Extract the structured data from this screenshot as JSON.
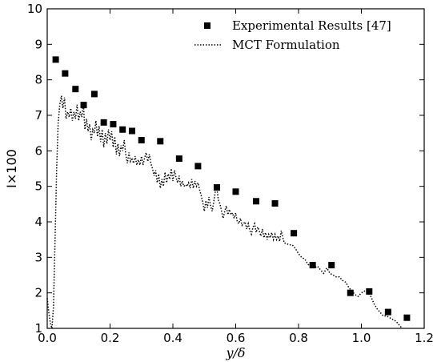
{
  "chart_data": {
    "type": "scatter",
    "xlabel": "y/δ",
    "ylabel": "I×100",
    "xlim": [
      0.0,
      1.2
    ],
    "ylim": [
      1,
      10
    ],
    "x_ticks": [
      "0.0",
      "0.2",
      "0.4",
      "0.6",
      "0.8",
      "1.0",
      "1.2"
    ],
    "y_ticks": [
      "1",
      "2",
      "3",
      "4",
      "5",
      "6",
      "7",
      "8",
      "9",
      "10"
    ],
    "grid": false,
    "legend_position": "top-right",
    "series": [
      {
        "name": "Experimental Results [47]",
        "style": "square-markers",
        "color": "#000000",
        "points": [
          [
            0.027,
            8.57
          ],
          [
            0.057,
            8.18
          ],
          [
            0.09,
            7.74
          ],
          [
            0.116,
            7.29
          ],
          [
            0.15,
            7.6
          ],
          [
            0.18,
            6.8
          ],
          [
            0.21,
            6.75
          ],
          [
            0.24,
            6.6
          ],
          [
            0.27,
            6.56
          ],
          [
            0.3,
            6.3
          ],
          [
            0.36,
            6.27
          ],
          [
            0.42,
            5.78
          ],
          [
            0.48,
            5.57
          ],
          [
            0.54,
            4.97
          ],
          [
            0.6,
            4.85
          ],
          [
            0.665,
            4.58
          ],
          [
            0.725,
            4.52
          ],
          [
            0.785,
            3.68
          ],
          [
            0.845,
            2.78
          ],
          [
            0.905,
            2.78
          ],
          [
            0.965,
            2.0
          ],
          [
            1.025,
            2.04
          ],
          [
            1.085,
            1.46
          ],
          [
            1.145,
            1.3
          ]
        ]
      },
      {
        "name": "MCT Formulation",
        "style": "dotted-line",
        "color": "#000000",
        "points": [
          [
            0.0,
            1.85
          ],
          [
            0.005,
            1.45
          ],
          [
            0.01,
            1.15
          ],
          [
            0.015,
            1.0
          ],
          [
            0.02,
            1.6
          ],
          [
            0.025,
            3.5
          ],
          [
            0.03,
            5.5
          ],
          [
            0.035,
            6.8
          ],
          [
            0.04,
            7.3
          ],
          [
            0.045,
            7.55
          ],
          [
            0.05,
            7.2
          ],
          [
            0.055,
            7.5
          ],
          [
            0.06,
            6.9
          ],
          [
            0.065,
            7.1
          ],
          [
            0.07,
            6.95
          ],
          [
            0.075,
            7.2
          ],
          [
            0.08,
            6.85
          ],
          [
            0.085,
            7.1
          ],
          [
            0.09,
            6.9
          ],
          [
            0.095,
            7.3
          ],
          [
            0.1,
            6.85
          ],
          [
            0.105,
            7.1
          ],
          [
            0.11,
            6.95
          ],
          [
            0.115,
            7.35
          ],
          [
            0.12,
            6.6
          ],
          [
            0.125,
            6.9
          ],
          [
            0.13,
            6.55
          ],
          [
            0.135,
            6.75
          ],
          [
            0.14,
            6.3
          ],
          [
            0.145,
            6.6
          ],
          [
            0.15,
            6.5
          ],
          [
            0.155,
            6.85
          ],
          [
            0.16,
            6.4
          ],
          [
            0.165,
            6.7
          ],
          [
            0.17,
            6.25
          ],
          [
            0.175,
            6.6
          ],
          [
            0.18,
            6.1
          ],
          [
            0.185,
            6.5
          ],
          [
            0.19,
            6.2
          ],
          [
            0.195,
            6.6
          ],
          [
            0.2,
            6.3
          ],
          [
            0.205,
            6.55
          ],
          [
            0.21,
            6.1
          ],
          [
            0.215,
            6.4
          ],
          [
            0.22,
            5.9
          ],
          [
            0.225,
            6.2
          ],
          [
            0.23,
            5.85
          ],
          [
            0.235,
            6.15
          ],
          [
            0.24,
            6.0
          ],
          [
            0.245,
            6.3
          ],
          [
            0.25,
            5.9
          ],
          [
            0.255,
            5.65
          ],
          [
            0.26,
            5.95
          ],
          [
            0.265,
            5.7
          ],
          [
            0.27,
            5.8
          ],
          [
            0.275,
            5.65
          ],
          [
            0.28,
            5.85
          ],
          [
            0.285,
            5.6
          ],
          [
            0.29,
            5.75
          ],
          [
            0.295,
            5.6
          ],
          [
            0.3,
            5.85
          ],
          [
            0.305,
            5.6
          ],
          [
            0.31,
            5.8
          ],
          [
            0.315,
            5.95
          ],
          [
            0.32,
            5.7
          ],
          [
            0.325,
            5.9
          ],
          [
            0.33,
            5.65
          ],
          [
            0.335,
            5.5
          ],
          [
            0.34,
            5.3
          ],
          [
            0.345,
            5.45
          ],
          [
            0.35,
            5.1
          ],
          [
            0.355,
            5.35
          ],
          [
            0.36,
            4.95
          ],
          [
            0.365,
            5.2
          ],
          [
            0.37,
            5.0
          ],
          [
            0.375,
            5.4
          ],
          [
            0.38,
            5.1
          ],
          [
            0.385,
            5.35
          ],
          [
            0.39,
            5.2
          ],
          [
            0.395,
            5.5
          ],
          [
            0.4,
            5.15
          ],
          [
            0.405,
            5.45
          ],
          [
            0.41,
            5.25
          ],
          [
            0.415,
            5.1
          ],
          [
            0.42,
            5.3
          ],
          [
            0.425,
            5.0
          ],
          [
            0.43,
            5.15
          ],
          [
            0.435,
            5.0
          ],
          [
            0.44,
            5.05
          ],
          [
            0.445,
            5.0
          ],
          [
            0.45,
            5.1
          ],
          [
            0.455,
            4.95
          ],
          [
            0.46,
            5.2
          ],
          [
            0.465,
            4.95
          ],
          [
            0.47,
            5.15
          ],
          [
            0.475,
            5.0
          ],
          [
            0.48,
            5.1
          ],
          [
            0.485,
            4.9
          ],
          [
            0.49,
            4.75
          ],
          [
            0.495,
            4.55
          ],
          [
            0.5,
            4.3
          ],
          [
            0.505,
            4.6
          ],
          [
            0.51,
            4.4
          ],
          [
            0.515,
            4.7
          ],
          [
            0.52,
            4.45
          ],
          [
            0.525,
            4.3
          ],
          [
            0.53,
            4.55
          ],
          [
            0.535,
            4.85
          ],
          [
            0.54,
            4.95
          ],
          [
            0.545,
            4.6
          ],
          [
            0.55,
            4.5
          ],
          [
            0.555,
            4.3
          ],
          [
            0.56,
            4.1
          ],
          [
            0.565,
            4.3
          ],
          [
            0.57,
            4.45
          ],
          [
            0.575,
            4.2
          ],
          [
            0.58,
            4.35
          ],
          [
            0.585,
            4.2
          ],
          [
            0.59,
            4.25
          ],
          [
            0.595,
            4.1
          ],
          [
            0.6,
            4.25
          ],
          [
            0.605,
            4.0
          ],
          [
            0.61,
            3.95
          ],
          [
            0.615,
            4.1
          ],
          [
            0.62,
            3.9
          ],
          [
            0.625,
            3.95
          ],
          [
            0.63,
            4.0
          ],
          [
            0.635,
            3.8
          ],
          [
            0.64,
            3.95
          ],
          [
            0.645,
            3.75
          ],
          [
            0.65,
            3.65
          ],
          [
            0.655,
            3.85
          ],
          [
            0.66,
            3.95
          ],
          [
            0.665,
            3.7
          ],
          [
            0.67,
            3.85
          ],
          [
            0.675,
            3.75
          ],
          [
            0.68,
            3.6
          ],
          [
            0.685,
            3.8
          ],
          [
            0.69,
            3.55
          ],
          [
            0.695,
            3.7
          ],
          [
            0.7,
            3.5
          ],
          [
            0.705,
            3.65
          ],
          [
            0.71,
            3.55
          ],
          [
            0.715,
            3.7
          ],
          [
            0.72,
            3.5
          ],
          [
            0.725,
            3.65
          ],
          [
            0.73,
            3.5
          ],
          [
            0.735,
            3.6
          ],
          [
            0.74,
            3.45
          ],
          [
            0.745,
            3.75
          ],
          [
            0.75,
            3.55
          ],
          [
            0.755,
            3.4
          ],
          [
            0.76,
            3.4
          ],
          [
            0.77,
            3.35
          ],
          [
            0.78,
            3.35
          ],
          [
            0.79,
            3.25
          ],
          [
            0.8,
            3.1
          ],
          [
            0.81,
            3.0
          ],
          [
            0.82,
            2.95
          ],
          [
            0.83,
            2.8
          ],
          [
            0.84,
            2.75
          ],
          [
            0.85,
            2.7
          ],
          [
            0.86,
            2.75
          ],
          [
            0.87,
            2.65
          ],
          [
            0.88,
            2.55
          ],
          [
            0.89,
            2.7
          ],
          [
            0.9,
            2.55
          ],
          [
            0.91,
            2.5
          ],
          [
            0.92,
            2.45
          ],
          [
            0.93,
            2.45
          ],
          [
            0.94,
            2.35
          ],
          [
            0.95,
            2.3
          ],
          [
            0.96,
            2.15
          ],
          [
            0.97,
            2.05
          ],
          [
            0.98,
            1.95
          ],
          [
            0.99,
            1.9
          ],
          [
            1.0,
            2.0
          ],
          [
            1.01,
            2.05
          ],
          [
            1.02,
            2.0
          ],
          [
            1.03,
            1.9
          ],
          [
            1.04,
            1.7
          ],
          [
            1.05,
            1.55
          ],
          [
            1.06,
            1.45
          ],
          [
            1.07,
            1.35
          ],
          [
            1.08,
            1.35
          ],
          [
            1.09,
            1.3
          ],
          [
            1.1,
            1.25
          ],
          [
            1.11,
            1.2
          ],
          [
            1.12,
            1.1
          ],
          [
            1.13,
            1.0
          ]
        ]
      }
    ]
  }
}
